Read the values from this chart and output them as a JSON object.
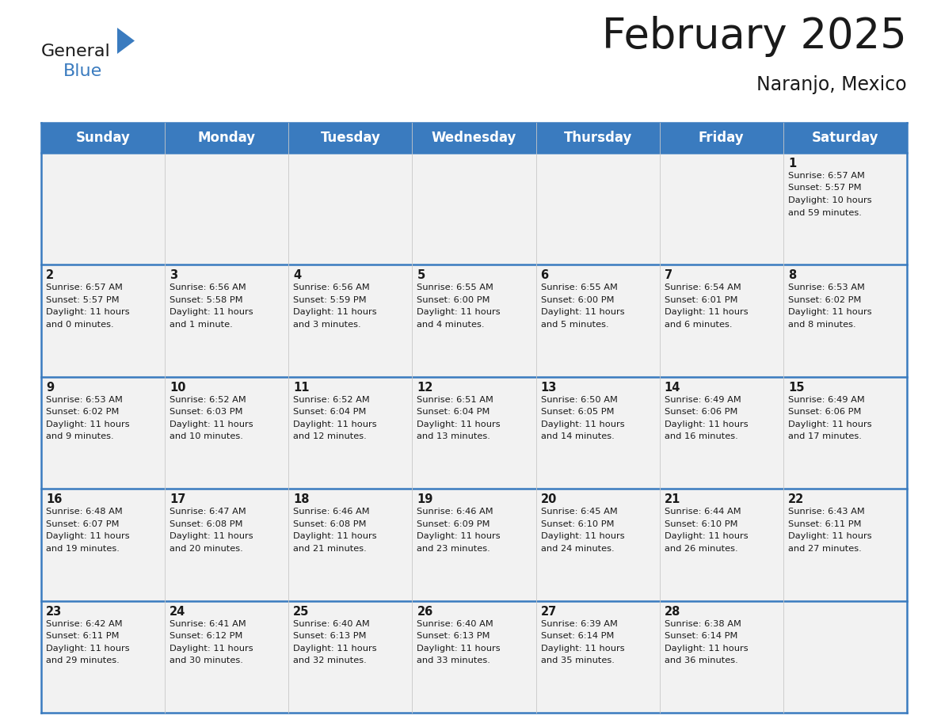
{
  "title": "February 2025",
  "subtitle": "Naranjo, Mexico",
  "header_bg_color": "#3a7bbf",
  "header_text_color": "#ffffff",
  "cell_bg_even": "#f2f2f2",
  "cell_bg_odd": "#f2f2f2",
  "border_color": "#3a7bbf",
  "thin_line_color": "#c8c8c8",
  "text_color": "#1a1a1a",
  "day_names": [
    "Sunday",
    "Monday",
    "Tuesday",
    "Wednesday",
    "Thursday",
    "Friday",
    "Saturday"
  ],
  "title_fontsize": 38,
  "subtitle_fontsize": 17,
  "day_header_fontsize": 12,
  "day_num_fontsize": 10.5,
  "cell_text_fontsize": 8.2,
  "logo_general_color": "#1a1a1a",
  "logo_blue_color": "#3a7bbf",
  "logo_triangle_color": "#3a7bbf",
  "calendar": [
    [
      null,
      null,
      null,
      null,
      null,
      null,
      {
        "day": 1,
        "sunrise": "6:57 AM",
        "sunset": "5:57 PM",
        "daylight_hours": 10,
        "daylight_minutes": 59
      }
    ],
    [
      {
        "day": 2,
        "sunrise": "6:57 AM",
        "sunset": "5:57 PM",
        "daylight_hours": 11,
        "daylight_minutes": 0
      },
      {
        "day": 3,
        "sunrise": "6:56 AM",
        "sunset": "5:58 PM",
        "daylight_hours": 11,
        "daylight_minutes": 1
      },
      {
        "day": 4,
        "sunrise": "6:56 AM",
        "sunset": "5:59 PM",
        "daylight_hours": 11,
        "daylight_minutes": 3
      },
      {
        "day": 5,
        "sunrise": "6:55 AM",
        "sunset": "6:00 PM",
        "daylight_hours": 11,
        "daylight_minutes": 4
      },
      {
        "day": 6,
        "sunrise": "6:55 AM",
        "sunset": "6:00 PM",
        "daylight_hours": 11,
        "daylight_minutes": 5
      },
      {
        "day": 7,
        "sunrise": "6:54 AM",
        "sunset": "6:01 PM",
        "daylight_hours": 11,
        "daylight_minutes": 6
      },
      {
        "day": 8,
        "sunrise": "6:53 AM",
        "sunset": "6:02 PM",
        "daylight_hours": 11,
        "daylight_minutes": 8
      }
    ],
    [
      {
        "day": 9,
        "sunrise": "6:53 AM",
        "sunset": "6:02 PM",
        "daylight_hours": 11,
        "daylight_minutes": 9
      },
      {
        "day": 10,
        "sunrise": "6:52 AM",
        "sunset": "6:03 PM",
        "daylight_hours": 11,
        "daylight_minutes": 10
      },
      {
        "day": 11,
        "sunrise": "6:52 AM",
        "sunset": "6:04 PM",
        "daylight_hours": 11,
        "daylight_minutes": 12
      },
      {
        "day": 12,
        "sunrise": "6:51 AM",
        "sunset": "6:04 PM",
        "daylight_hours": 11,
        "daylight_minutes": 13
      },
      {
        "day": 13,
        "sunrise": "6:50 AM",
        "sunset": "6:05 PM",
        "daylight_hours": 11,
        "daylight_minutes": 14
      },
      {
        "day": 14,
        "sunrise": "6:49 AM",
        "sunset": "6:06 PM",
        "daylight_hours": 11,
        "daylight_minutes": 16
      },
      {
        "day": 15,
        "sunrise": "6:49 AM",
        "sunset": "6:06 PM",
        "daylight_hours": 11,
        "daylight_minutes": 17
      }
    ],
    [
      {
        "day": 16,
        "sunrise": "6:48 AM",
        "sunset": "6:07 PM",
        "daylight_hours": 11,
        "daylight_minutes": 19
      },
      {
        "day": 17,
        "sunrise": "6:47 AM",
        "sunset": "6:08 PM",
        "daylight_hours": 11,
        "daylight_minutes": 20
      },
      {
        "day": 18,
        "sunrise": "6:46 AM",
        "sunset": "6:08 PM",
        "daylight_hours": 11,
        "daylight_minutes": 21
      },
      {
        "day": 19,
        "sunrise": "6:46 AM",
        "sunset": "6:09 PM",
        "daylight_hours": 11,
        "daylight_minutes": 23
      },
      {
        "day": 20,
        "sunrise": "6:45 AM",
        "sunset": "6:10 PM",
        "daylight_hours": 11,
        "daylight_minutes": 24
      },
      {
        "day": 21,
        "sunrise": "6:44 AM",
        "sunset": "6:10 PM",
        "daylight_hours": 11,
        "daylight_minutes": 26
      },
      {
        "day": 22,
        "sunrise": "6:43 AM",
        "sunset": "6:11 PM",
        "daylight_hours": 11,
        "daylight_minutes": 27
      }
    ],
    [
      {
        "day": 23,
        "sunrise": "6:42 AM",
        "sunset": "6:11 PM",
        "daylight_hours": 11,
        "daylight_minutes": 29
      },
      {
        "day": 24,
        "sunrise": "6:41 AM",
        "sunset": "6:12 PM",
        "daylight_hours": 11,
        "daylight_minutes": 30
      },
      {
        "day": 25,
        "sunrise": "6:40 AM",
        "sunset": "6:13 PM",
        "daylight_hours": 11,
        "daylight_minutes": 32
      },
      {
        "day": 26,
        "sunrise": "6:40 AM",
        "sunset": "6:13 PM",
        "daylight_hours": 11,
        "daylight_minutes": 33
      },
      {
        "day": 27,
        "sunrise": "6:39 AM",
        "sunset": "6:14 PM",
        "daylight_hours": 11,
        "daylight_minutes": 35
      },
      {
        "day": 28,
        "sunrise": "6:38 AM",
        "sunset": "6:14 PM",
        "daylight_hours": 11,
        "daylight_minutes": 36
      },
      null
    ]
  ]
}
